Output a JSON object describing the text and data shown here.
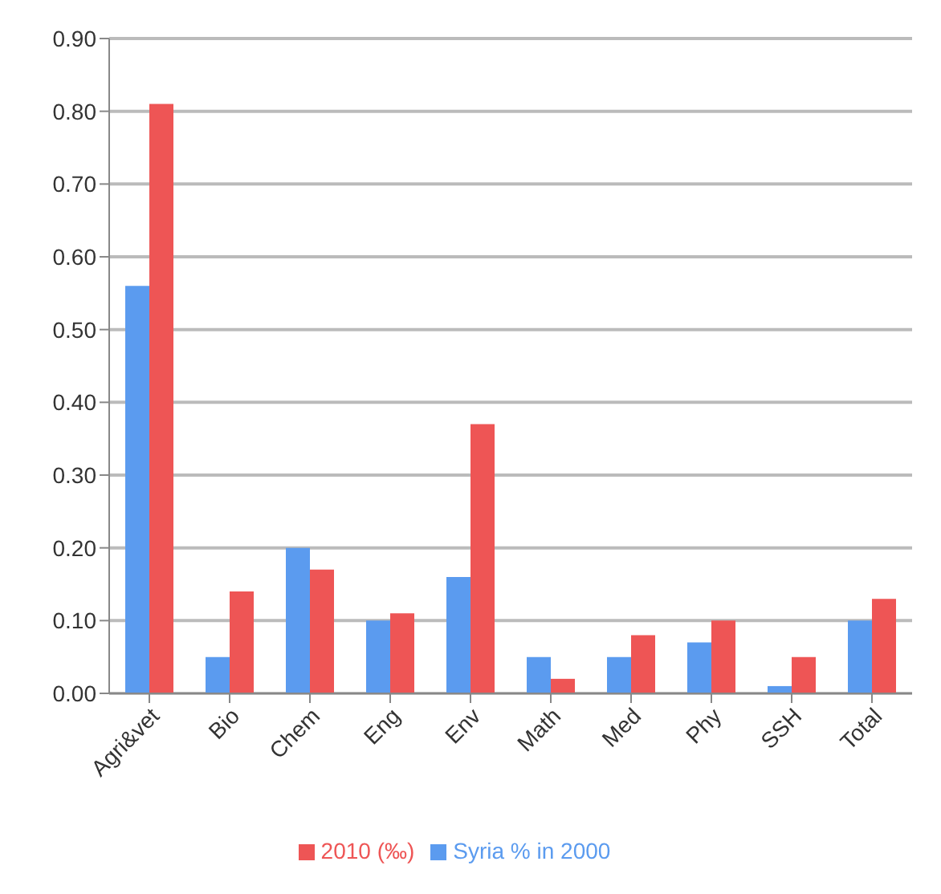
{
  "chart_data": {
    "type": "bar",
    "categories": [
      "Agri&vet",
      "Bio",
      "Chem",
      "Eng",
      "Env",
      "Math",
      "Med",
      "Phy",
      "SSH",
      "Total"
    ],
    "series": [
      {
        "name": "Syria % in 2000",
        "color": "#5b9bef",
        "values": [
          0.56,
          0.05,
          0.2,
          0.1,
          0.16,
          0.05,
          0.05,
          0.07,
          0.01,
          0.1
        ]
      },
      {
        "name": "2010 (‰)",
        "color": "#ee5555",
        "values": [
          0.81,
          0.14,
          0.17,
          0.11,
          0.37,
          0.02,
          0.08,
          0.1,
          0.05,
          0.13
        ]
      }
    ],
    "ylim": [
      0,
      0.9
    ],
    "yticks": [
      {
        "value": 0,
        "label": "0.00"
      },
      {
        "value": 0.1,
        "label": "0.10"
      },
      {
        "value": 0.2,
        "label": "0.20"
      },
      {
        "value": 0.3,
        "label": "0.30"
      },
      {
        "value": 0.4,
        "label": "0.40"
      },
      {
        "value": 0.5,
        "label": "0.50"
      },
      {
        "value": 0.6,
        "label": "0.60"
      },
      {
        "value": 0.7,
        "label": "0.70"
      },
      {
        "value": 0.8,
        "label": "0.80"
      },
      {
        "value": 0.9,
        "label": "0.90"
      }
    ],
    "grid": "y",
    "legend": "bottom"
  }
}
